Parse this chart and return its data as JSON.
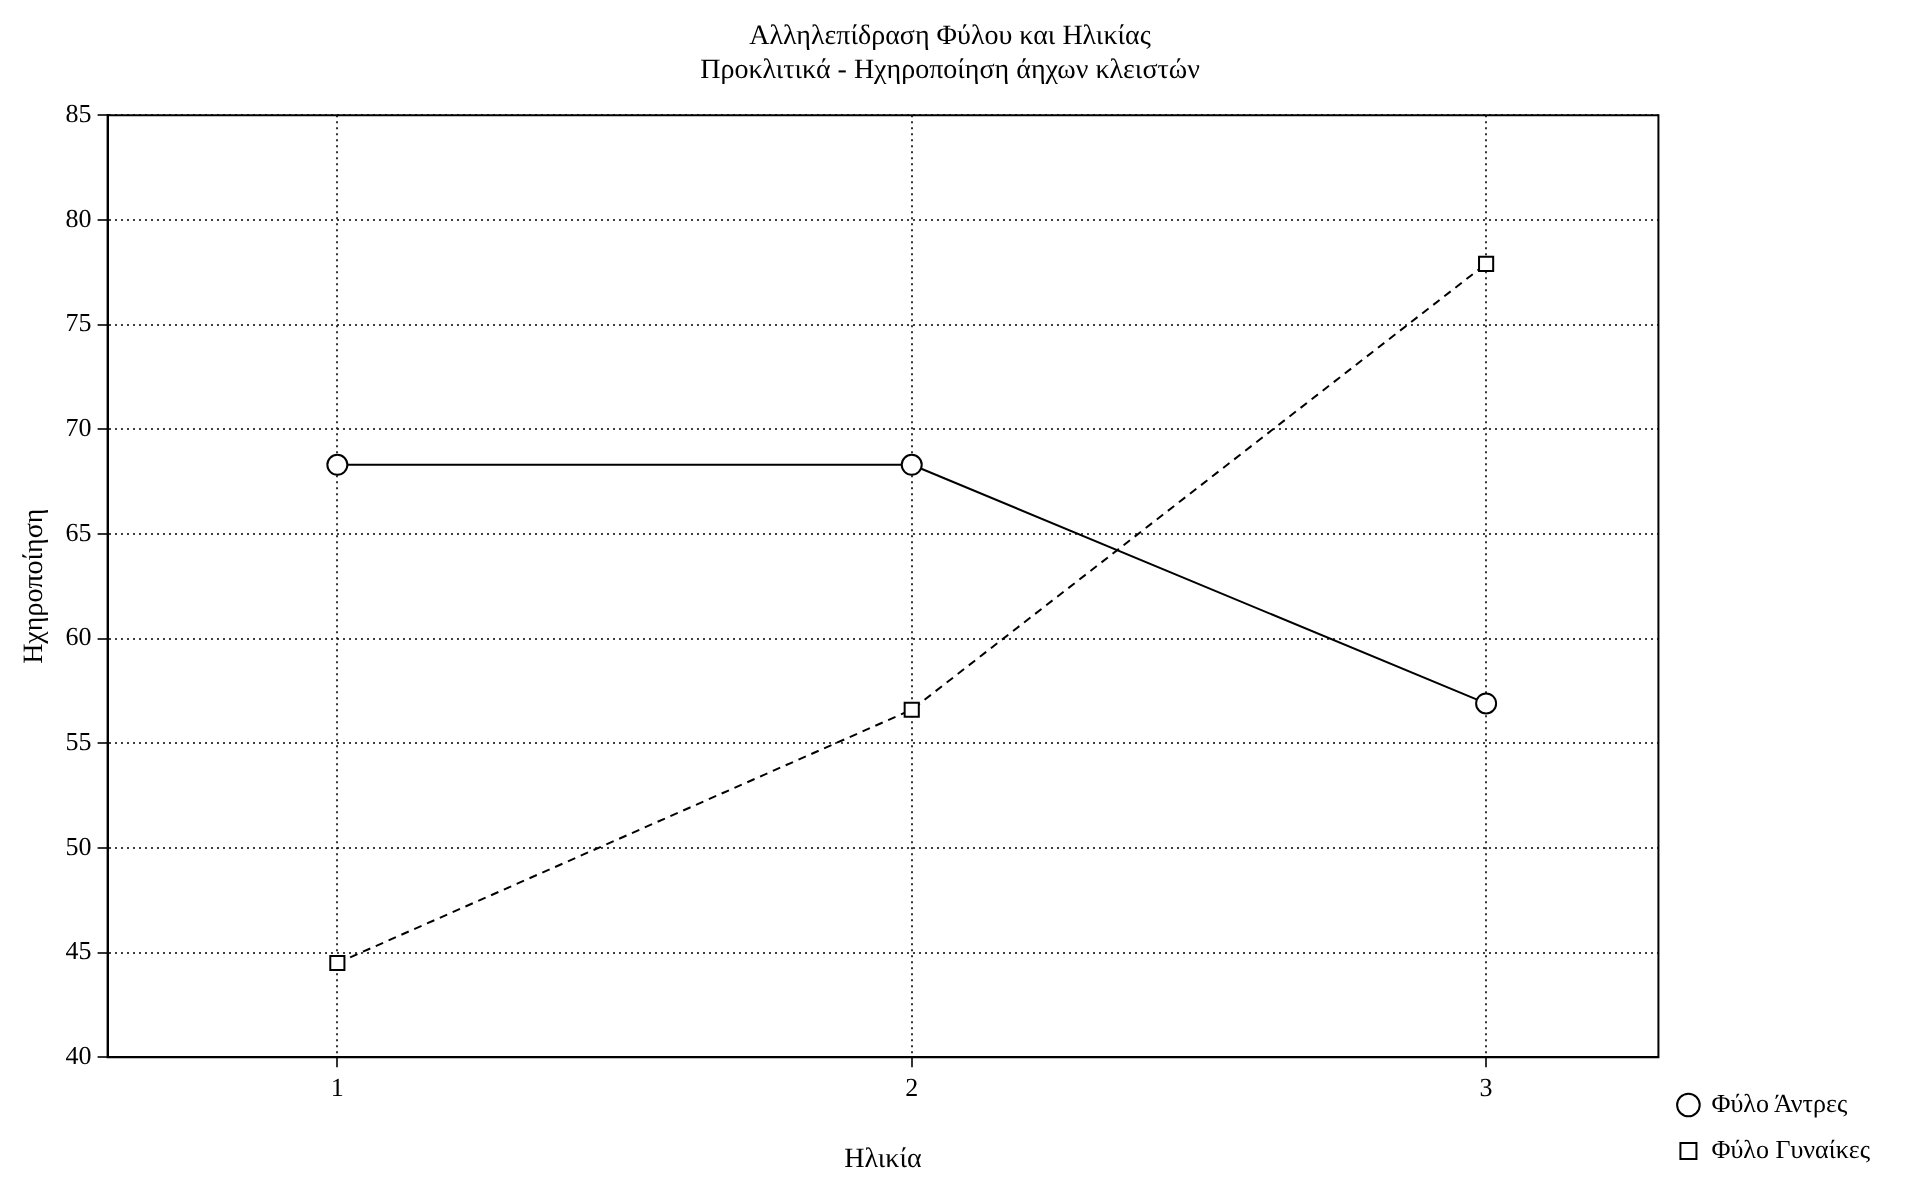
{
  "chart_data": {
    "type": "line",
    "title": "Αλληλεπίδραση Φύλου και Ηλικίας",
    "subtitle": "Προκλιτικά - Ηχηροποίηση άηχων κλειστών",
    "xlabel": "Ηλικία",
    "ylabel": "Ηχηροποίηση",
    "x": [
      1,
      2,
      3
    ],
    "xlim": [
      0.6,
      3.3
    ],
    "xticks": [
      1,
      2,
      3
    ],
    "ylim": [
      40,
      85
    ],
    "yticks": [
      40,
      45,
      50,
      55,
      60,
      65,
      70,
      75,
      80,
      85
    ],
    "grid": true,
    "legend": "bottom right",
    "series": [
      {
        "name": "Φύλο Άντρες",
        "color": "#000000",
        "values": [
          68.3,
          68.3,
          56.9
        ],
        "marker": "circle",
        "line_style": "solid"
      },
      {
        "name": "Φύλο Γυναίκες",
        "color": "#000000",
        "values": [
          44.5,
          56.6,
          77.9
        ],
        "marker": "square",
        "line_style": "dashed"
      }
    ]
  }
}
